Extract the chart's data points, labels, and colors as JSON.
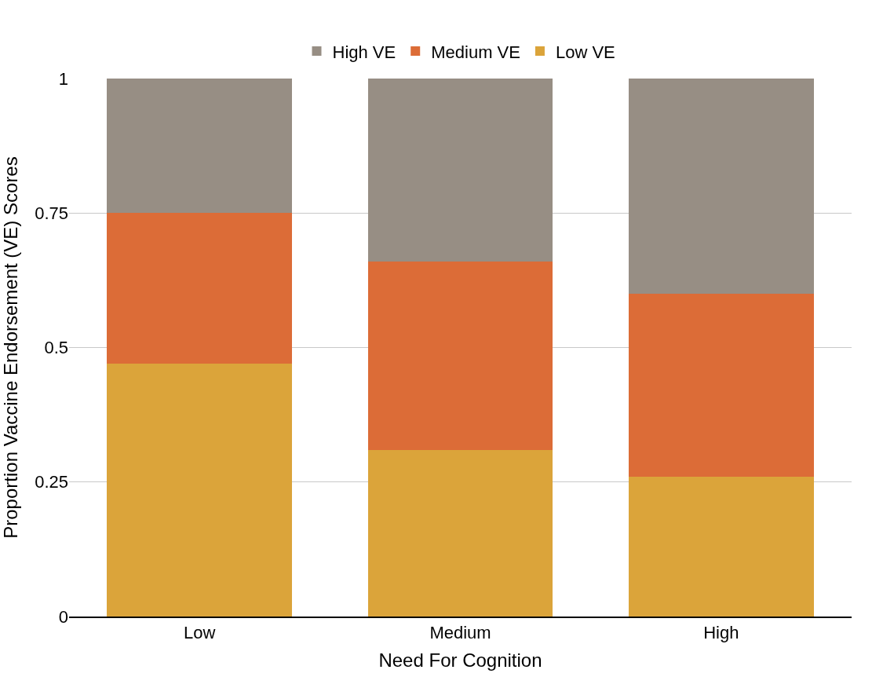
{
  "chart_data": {
    "type": "bar",
    "stacked": true,
    "xlabel": "Need For Cognition",
    "ylabel": "Proportion Vaccine Endorsement (VE) Scores",
    "categories": [
      "Low",
      "Medium",
      "High"
    ],
    "series": [
      {
        "name": "Low VE",
        "color": "#dba43a",
        "values": [
          0.47,
          0.31,
          0.26
        ]
      },
      {
        "name": "Medium VE",
        "color": "#dc6c37",
        "values": [
          0.28,
          0.35,
          0.34
        ]
      },
      {
        "name": "High VE",
        "color": "#978e84",
        "values": [
          0.25,
          0.34,
          0.4
        ]
      }
    ],
    "ylim": [
      0,
      1
    ],
    "yticks": [
      0,
      0.25,
      0.5,
      0.75,
      1
    ],
    "grid": "y",
    "legend": "top"
  }
}
